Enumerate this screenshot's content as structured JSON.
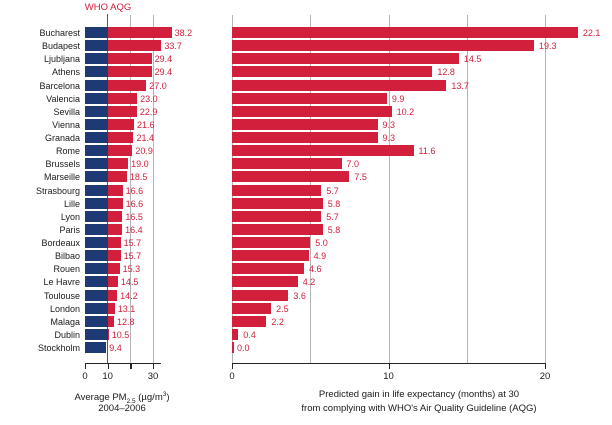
{
  "colors": {
    "bar_red": "#d2203c",
    "bar_blue": "#1e3a74",
    "grid": "#b3b3b3",
    "axis": "#262626",
    "text": "#1a1a1a"
  },
  "reference": {
    "label": "WHO AQG"
  },
  "captions": {
    "left": {
      "pre": "Average PM",
      "sub": "2.5",
      "unit_open": " (µg/m",
      "sup": "3",
      "unit_close": ")",
      "line2": "2004–2006"
    },
    "right": {
      "line1": "Predicted gain in life expectancy (months) at 30",
      "line2": "from complying with WHO's Air Quality Guideline (AQG)"
    }
  },
  "chart_data": [
    {
      "type": "bar",
      "orientation": "horizontal",
      "title": "",
      "xlabel": "Average PM 2.5 (µg/m³) 2004–2006",
      "ylabel": "",
      "categories": [
        "Bucharest",
        "Budapest",
        "Ljubljana",
        "Athens",
        "Barcelona",
        "Valencia",
        "Sevilla",
        "Vienna",
        "Granada",
        "Rome",
        "Brussels",
        "Marseille",
        "Strasbourg",
        "Lille",
        "Lyon",
        "Paris",
        "Bordeaux",
        "Bilbao",
        "Rouen",
        "Le Havre",
        "Toulouse",
        "London",
        "Malaga",
        "Dublin",
        "Stockholm"
      ],
      "values": [
        38.2,
        33.7,
        29.4,
        29.4,
        27.0,
        23.0,
        22.9,
        21.6,
        21.4,
        20.9,
        19.0,
        18.5,
        16.6,
        16.6,
        16.5,
        16.4,
        15.7,
        15.7,
        15.3,
        14.5,
        14.2,
        13.1,
        12.8,
        10.5,
        9.4
      ],
      "value_labels": [
        "38.2",
        "33.7",
        "29.4",
        "29.4",
        "27.0",
        "23.0",
        "22.9",
        "21.6",
        "21.4",
        "20.9",
        "19.0",
        "18.5",
        "16.6",
        "16.6",
        "16.5",
        "16.4",
        "15.7",
        "15.7",
        "15.3",
        "14.5",
        "14.2",
        "13.1",
        "12.8",
        "10.5",
        "9.4"
      ],
      "xlim": [
        0,
        33
      ],
      "xticks": [
        0,
        10,
        20,
        30
      ],
      "xtick_labels": [
        "0",
        "10",
        "",
        "30"
      ],
      "gridlines": [
        20,
        30
      ],
      "reference_line": {
        "value": 10,
        "label": "WHO AQG",
        "color": "#d2203c"
      },
      "segment_threshold": 10,
      "segment_colors": {
        "below_threshold": "#1e3a74",
        "above_threshold": "#d2203c"
      },
      "legend": "none"
    },
    {
      "type": "bar",
      "orientation": "horizontal",
      "title": "",
      "xlabel": "Predicted gain in life expectancy (months) at 30 from complying with WHO's Air Quality Guideline (AQG)",
      "ylabel": "",
      "categories": [
        "Bucharest",
        "Budapest",
        "Ljubljana",
        "Athens",
        "Barcelona",
        "Valencia",
        "Sevilla",
        "Vienna",
        "Granada",
        "Rome",
        "Brussels",
        "Marseille",
        "Strasbourg",
        "Lille",
        "Lyon",
        "Paris",
        "Bordeaux",
        "Bilbao",
        "Rouen",
        "Le Havre",
        "Toulouse",
        "London",
        "Malaga",
        "Dublin",
        "Stockholm"
      ],
      "values": [
        22.1,
        19.3,
        14.5,
        12.8,
        13.7,
        9.9,
        10.2,
        9.3,
        9.3,
        11.6,
        7.0,
        7.5,
        5.7,
        5.8,
        5.7,
        5.8,
        5.0,
        4.9,
        4.6,
        4.2,
        3.6,
        2.5,
        2.2,
        0.4,
        0.0
      ],
      "value_labels": [
        "22.1",
        "19.3",
        "14.5",
        "12.8",
        "13.7",
        "9.9",
        "10.2",
        "9.3",
        "9.3",
        "11.6",
        "7.0",
        "7.5",
        "5.7",
        "5.8",
        "5.7",
        "5.8",
        "5.0",
        "4.9",
        "4.6",
        "4.2",
        "3.6",
        "2.5",
        "2.2",
        "0.4",
        "0.0"
      ],
      "xlim": [
        0,
        20
      ],
      "xticks": [
        0,
        10,
        20
      ],
      "xtick_labels": [
        "0",
        "10",
        "20"
      ],
      "gridlines": [
        0,
        5,
        10,
        15,
        20
      ],
      "bar_color": "#d2203c",
      "legend": "none"
    }
  ]
}
